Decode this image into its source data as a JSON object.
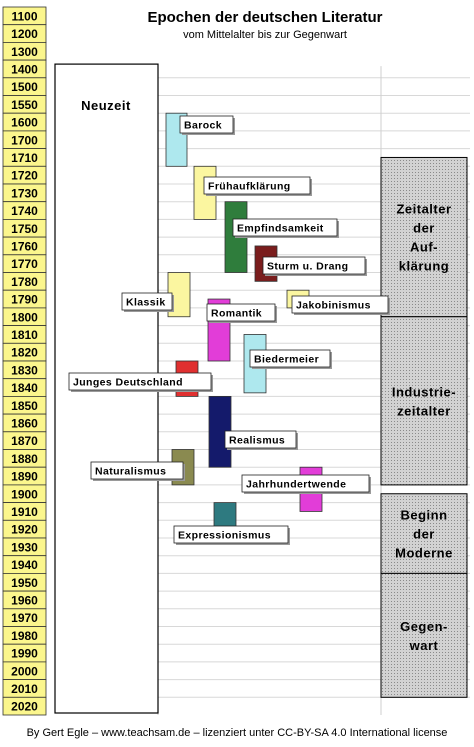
{
  "title": "Epochen der deutschen Literatur",
  "subtitle": "vom Mittelalter bis zur Gegenwart",
  "footer": "By Gert Egle – www.teachsam.de – lizenziert unter CC-BY-SA 4.0 International license",
  "chart_data": {
    "type": "timeline",
    "year_range": [
      1100,
      2020
    ],
    "years": [
      1100,
      1200,
      1300,
      1400,
      1500,
      1550,
      1600,
      1700,
      1710,
      1720,
      1730,
      1740,
      1750,
      1760,
      1770,
      1780,
      1790,
      1800,
      1810,
      1820,
      1830,
      1840,
      1850,
      1860,
      1870,
      1880,
      1890,
      1900,
      1910,
      1920,
      1930,
      1940,
      1950,
      1960,
      1970,
      1980,
      1990,
      2000,
      2010,
      2020
    ],
    "era": {
      "label": "Neuzeit",
      "start": 1400,
      "end": 2020
    },
    "epochs": [
      {
        "label": "Barock",
        "start": 1600,
        "end": 1720,
        "color": "#aee8ee"
      },
      {
        "label": "Frühaufklärung",
        "start": 1720,
        "end": 1750,
        "color": "#fbf6a0"
      },
      {
        "label": "Empfindsamkeit",
        "start": 1740,
        "end": 1780,
        "color": "#2f7d3c"
      },
      {
        "label": "Sturm u. Drang",
        "start": 1765,
        "end": 1785,
        "color": "#7a1d1d"
      },
      {
        "label": "Jakobinismus",
        "start": 1790,
        "end": 1800,
        "color": "#fbf6a0"
      },
      {
        "label": "Klassik",
        "start": 1780,
        "end": 1805,
        "color": "#fbf6a0"
      },
      {
        "label": "Romantik",
        "start": 1795,
        "end": 1830,
        "color": "#e23dd8"
      },
      {
        "label": "Biedermeier",
        "start": 1815,
        "end": 1848,
        "color": "#aee8ee"
      },
      {
        "label": "Junges Deutschland",
        "start": 1830,
        "end": 1850,
        "color": "#e03030"
      },
      {
        "label": "Realismus",
        "start": 1850,
        "end": 1890,
        "color": "#141a6b"
      },
      {
        "label": "Naturalismus",
        "start": 1880,
        "end": 1900,
        "color": "#8a8a50"
      },
      {
        "label": "Jahrhundertwende",
        "start": 1890,
        "end": 1915,
        "color": "#e23dd8"
      },
      {
        "label": "Expressionismus",
        "start": 1910,
        "end": 1925,
        "color": "#2e7a80"
      }
    ],
    "ages": [
      {
        "label": "Zeitalter der Auf-klärung",
        "lines": [
          "Zeitalter",
          "der",
          "Auf-",
          "klärung"
        ],
        "start": 1715,
        "end": 1805
      },
      {
        "label": "Industrie-zeitalter",
        "lines": [
          "Industrie-",
          "zeitalter"
        ],
        "start": 1805,
        "end": 1900
      },
      {
        "label": "Beginn der Moderne",
        "lines": [
          "Beginn",
          "der",
          "Moderne"
        ],
        "start": 1905,
        "end": 1950
      },
      {
        "label": "Gegen-wart",
        "lines": [
          "Gegen-",
          "wart"
        ],
        "start": 1950,
        "end": 2020
      }
    ]
  }
}
